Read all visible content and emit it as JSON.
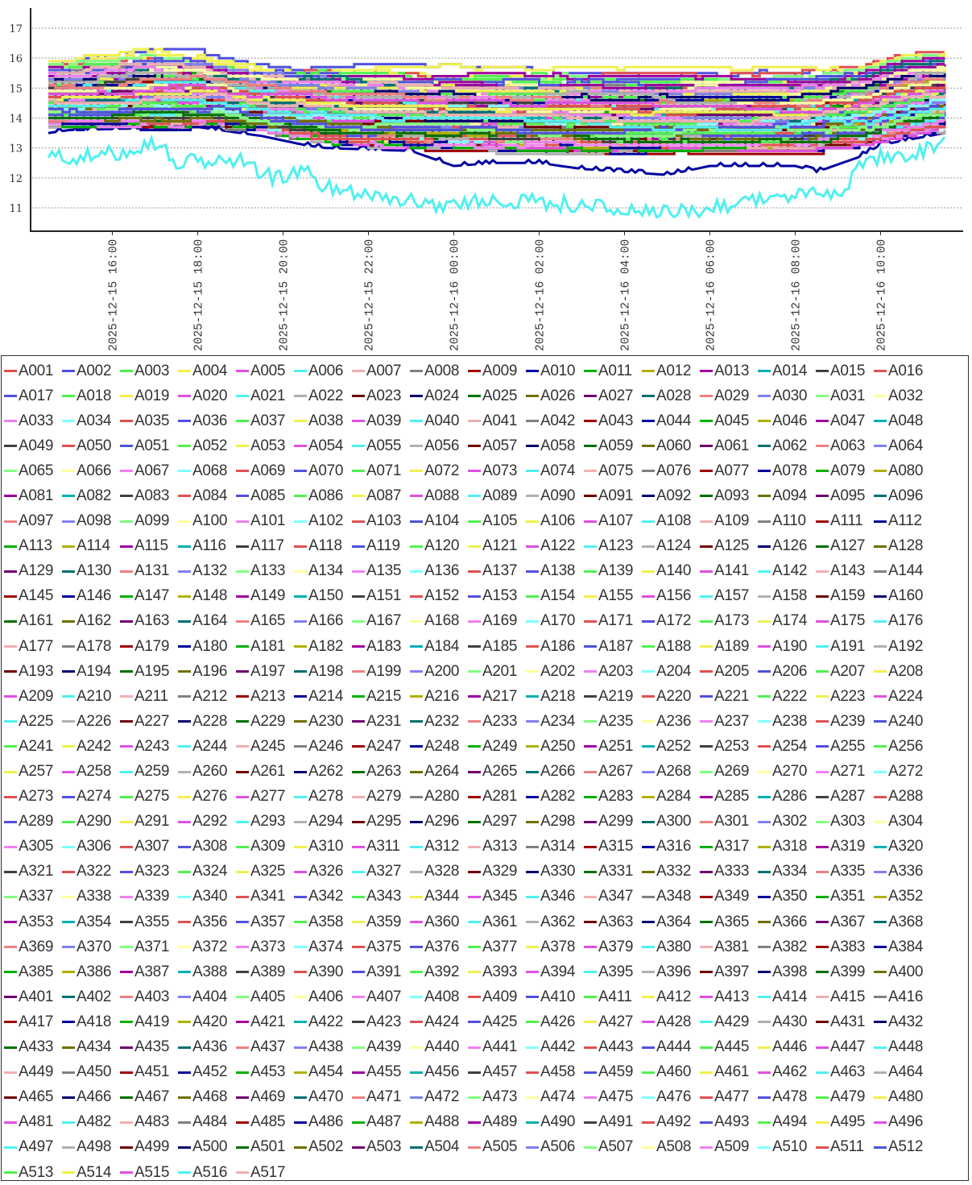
{
  "chart_data": {
    "type": "line",
    "title": "",
    "xlabel": "",
    "ylabel": "",
    "x_unit": "hours since 2025-12-15 14:30",
    "xlim": [
      0,
      21.0
    ],
    "ylim": [
      10.22,
      17.67
    ],
    "yticks": [
      11,
      12,
      13,
      14,
      15,
      16,
      17
    ],
    "xticks": [
      {
        "h": 1.5,
        "label": "2025-12-15 16:00"
      },
      {
        "h": 3.5,
        "label": "2025-12-15 18:00"
      },
      {
        "h": 5.5,
        "label": "2025-12-15 20:00"
      },
      {
        "h": 7.5,
        "label": "2025-12-15 22:00"
      },
      {
        "h": 9.5,
        "label": "2025-12-16 00:00"
      },
      {
        "h": 11.5,
        "label": "2025-12-16 02:00"
      },
      {
        "h": 13.5,
        "label": "2025-12-16 04:00"
      },
      {
        "h": 15.5,
        "label": "2025-12-16 06:00"
      },
      {
        "h": 17.5,
        "label": "2025-12-16 08:00"
      },
      {
        "h": 19.5,
        "label": "2025-12-16 10:00"
      }
    ],
    "grid": "horizontal-dashed",
    "legend_placement": "bottom",
    "palette": [
      "#e05050",
      "#5050e0",
      "#50f050",
      "#f0f050",
      "#e050e0",
      "#50f0f0",
      "#f0b0b0",
      "#808080",
      "#a00000",
      "#0000a0",
      "#00b000",
      "#b0b000",
      "#a000a0",
      "#00b0b0",
      "#404040",
      "#e05050",
      "#5050e0",
      "#50f050",
      "#f0f050",
      "#e050e0",
      "#50f0f0",
      "#b0b0b0",
      "#700000",
      "#000070",
      "#007000",
      "#707000",
      "#700070",
      "#007070",
      "#f08080",
      "#8080f0",
      "#80ff80",
      "#ffffa0",
      "#f080f0",
      "#80ffff"
    ],
    "profile_top": [
      [
        0,
        0
      ],
      [
        1.5,
        0.1
      ],
      [
        2.5,
        0.3
      ],
      [
        3.5,
        0.2
      ],
      [
        4.5,
        -0.1
      ],
      [
        5.5,
        -0.2
      ],
      [
        9.5,
        -0.3
      ],
      [
        13.5,
        -0.4
      ],
      [
        17.5,
        -0.4
      ],
      [
        19,
        -0.2
      ],
      [
        20,
        0.2
      ],
      [
        21,
        0.3
      ]
    ],
    "profile_bottom": [
      [
        0,
        0
      ],
      [
        4,
        0
      ],
      [
        5.5,
        -0.3
      ],
      [
        7,
        -0.6
      ],
      [
        9.5,
        -0.7
      ],
      [
        13.5,
        -0.8
      ],
      [
        17.5,
        -0.8
      ],
      [
        19,
        -0.6
      ],
      [
        20,
        -0.3
      ],
      [
        21,
        0
      ]
    ],
    "explicit_series": {
      "A006": [
        [
          0,
          12.7
        ],
        [
          1,
          12.7
        ],
        [
          1.5,
          12.8
        ],
        [
          2.5,
          13.2
        ],
        [
          3,
          12.5
        ],
        [
          4.5,
          12.6
        ],
        [
          5.25,
          12.0
        ],
        [
          6,
          12.2
        ],
        [
          6.5,
          11.7
        ],
        [
          7.5,
          11.5
        ],
        [
          8.5,
          11.2
        ],
        [
          9.5,
          11.1
        ],
        [
          10.5,
          11.3
        ],
        [
          11.5,
          11.2
        ],
        [
          12.5,
          11.1
        ],
        [
          13.5,
          10.9
        ],
        [
          14.5,
          10.8
        ],
        [
          15.5,
          11.0
        ],
        [
          16.5,
          11.3
        ],
        [
          17.5,
          11.4
        ],
        [
          18.5,
          11.5
        ],
        [
          19,
          12.3
        ],
        [
          19.5,
          12.7
        ],
        [
          20.5,
          12.9
        ],
        [
          21,
          13.2
        ]
      ],
      "A010": [
        [
          0,
          13.5
        ],
        [
          0.5,
          13.6
        ],
        [
          3.5,
          13.7
        ],
        [
          5,
          13.4
        ],
        [
          6,
          13.1
        ],
        [
          6.5,
          13.0
        ],
        [
          8.5,
          12.9
        ],
        [
          9.5,
          12.4
        ],
        [
          10.5,
          12.5
        ],
        [
          11.5,
          12.5
        ],
        [
          12.5,
          12.3
        ],
        [
          13.5,
          12.2
        ],
        [
          14.5,
          12.1
        ],
        [
          15.5,
          12.4
        ],
        [
          16.5,
          12.4
        ],
        [
          17.5,
          12.4
        ],
        [
          18,
          12.2
        ],
        [
          19,
          12.7
        ],
        [
          19.5,
          13.1
        ],
        [
          21,
          13.5
        ]
      ]
    },
    "series_names": [
      "A001",
      "A002",
      "A003",
      "A004",
      "A005",
      "A006",
      "A007",
      "A008",
      "A009",
      "A010",
      "A011",
      "A012",
      "A013",
      "A014",
      "A015",
      "A016",
      "A017",
      "A018",
      "A019",
      "A020",
      "A021",
      "A022",
      "A023",
      "A024",
      "A025",
      "A026",
      "A027",
      "A028",
      "A029",
      "A030",
      "A031",
      "A032",
      "A033",
      "A034",
      "A035",
      "A036",
      "A037",
      "A038",
      "A039",
      "A040",
      "A041",
      "A042",
      "A043",
      "A044",
      "A045",
      "A046",
      "A047",
      "A048",
      "A049",
      "A050",
      "A051",
      "A052",
      "A053",
      "A054",
      "A055",
      "A056",
      "A057",
      "A058",
      "A059",
      "A060",
      "A061",
      "A062",
      "A063",
      "A064",
      "A065",
      "A066",
      "A067",
      "A068",
      "A069",
      "A070",
      "A071",
      "A072",
      "A073",
      "A074",
      "A075",
      "A076",
      "A077",
      "A078",
      "A079",
      "A080",
      "A081",
      "A082",
      "A083",
      "A084",
      "A085",
      "A086",
      "A087",
      "A088",
      "A089",
      "A090",
      "A091",
      "A092",
      "A093",
      "A094",
      "A095",
      "A096",
      "A097",
      "A098",
      "A099",
      "A100",
      "A101",
      "A102",
      "A103",
      "A104",
      "A105",
      "A106",
      "A107",
      "A108",
      "A109",
      "A110",
      "A111",
      "A112",
      "A113",
      "A114",
      "A115",
      "A116",
      "A117",
      "A118",
      "A119",
      "A120",
      "A121",
      "A122",
      "A123",
      "A124",
      "A125",
      "A126",
      "A127",
      "A128",
      "A129",
      "A130",
      "A131",
      "A132",
      "A133",
      "A134",
      "A135",
      "A136",
      "A137",
      "A138",
      "A139",
      "A140",
      "A141",
      "A142",
      "A143",
      "A144",
      "A145",
      "A146",
      "A147",
      "A148",
      "A149",
      "A150",
      "A151",
      "A152",
      "A153",
      "A154",
      "A155",
      "A156",
      "A157",
      "A158",
      "A159",
      "A160",
      "A161",
      "A162",
      "A163",
      "A164",
      "A165",
      "A166",
      "A167",
      "A168",
      "A169",
      "A170",
      "A171",
      "A172",
      "A173",
      "A174",
      "A175",
      "A176",
      "A177",
      "A178",
      "A179",
      "A180",
      "A181",
      "A182",
      "A183",
      "A184",
      "A185",
      "A186",
      "A187",
      "A188",
      "A189",
      "A190",
      "A191",
      "A192",
      "A193",
      "A194",
      "A195",
      "A196",
      "A197",
      "A198",
      "A199",
      "A200",
      "A201",
      "A202",
      "A203",
      "A204",
      "A205",
      "A206",
      "A207",
      "A208",
      "A209",
      "A210",
      "A211",
      "A212",
      "A213",
      "A214",
      "A215",
      "A216",
      "A217",
      "A218",
      "A219",
      "A220",
      "A221",
      "A222",
      "A223",
      "A224",
      "A225",
      "A226",
      "A227",
      "A228",
      "A229",
      "A230",
      "A231",
      "A232",
      "A233",
      "A234",
      "A235",
      "A236",
      "A237",
      "A238",
      "A239",
      "A240",
      "A241",
      "A242",
      "A243",
      "A244",
      "A245",
      "A246",
      "A247",
      "A248",
      "A249",
      "A250",
      "A251",
      "A252",
      "A253",
      "A254",
      "A255",
      "A256",
      "A257",
      "A258",
      "A259",
      "A260",
      "A261",
      "A262",
      "A263",
      "A264",
      "A265",
      "A266",
      "A267",
      "A268",
      "A269",
      "A270",
      "A271",
      "A272",
      "A273",
      "A274",
      "A275",
      "A276",
      "A277",
      "A278",
      "A279",
      "A280",
      "A281",
      "A282",
      "A283",
      "A284",
      "A285",
      "A286",
      "A287",
      "A288",
      "A289",
      "A290",
      "A291",
      "A292",
      "A293",
      "A294",
      "A295",
      "A296",
      "A297",
      "A298",
      "A299",
      "A300",
      "A301",
      "A302",
      "A303",
      "A304",
      "A305",
      "A306",
      "A307",
      "A308",
      "A309",
      "A310",
      "A311",
      "A312",
      "A313",
      "A314",
      "A315",
      "A316",
      "A317",
      "A318",
      "A319",
      "A320",
      "A321",
      "A322",
      "A323",
      "A324",
      "A325",
      "A326",
      "A327",
      "A328",
      "A329",
      "A330",
      "A331",
      "A332",
      "A333",
      "A334",
      "A335",
      "A336",
      "A337",
      "A338",
      "A339",
      "A340",
      "A341",
      "A342",
      "A343",
      "A344",
      "A345",
      "A346",
      "A347",
      "A348",
      "A349",
      "A350",
      "A351",
      "A352",
      "A353",
      "A354",
      "A355",
      "A356",
      "A357",
      "A358",
      "A359",
      "A360",
      "A361",
      "A362",
      "A363",
      "A364",
      "A365",
      "A366",
      "A367",
      "A368",
      "A369",
      "A370",
      "A371",
      "A372",
      "A373",
      "A374",
      "A375",
      "A376",
      "A377",
      "A378",
      "A379",
      "A380",
      "A381",
      "A382",
      "A383",
      "A384",
      "A385",
      "A386",
      "A387",
      "A388",
      "A389",
      "A390",
      "A391",
      "A392",
      "A393",
      "A394",
      "A395",
      "A396",
      "A397",
      "A398",
      "A399",
      "A400",
      "A401",
      "A402",
      "A403",
      "A404",
      "A405",
      "A406",
      "A407",
      "A408",
      "A409",
      "A410",
      "A411",
      "A412",
      "A413",
      "A414",
      "A415",
      "A416",
      "A417",
      "A418",
      "A419",
      "A420",
      "A421",
      "A422",
      "A423",
      "A424",
      "A425",
      "A426",
      "A427",
      "A428",
      "A429",
      "A430",
      "A431",
      "A432",
      "A433",
      "A434",
      "A435",
      "A436",
      "A437",
      "A438",
      "A439",
      "A440",
      "A441",
      "A442",
      "A443",
      "A444",
      "A445",
      "A446",
      "A447",
      "A448",
      "A449",
      "A450",
      "A451",
      "A452",
      "A453",
      "A454",
      "A455",
      "A456",
      "A457",
      "A458",
      "A459",
      "A460",
      "A461",
      "A462",
      "A463",
      "A464",
      "A465",
      "A466",
      "A467",
      "A468",
      "A469",
      "A470",
      "A471",
      "A472",
      "A473",
      "A474",
      "A475",
      "A476",
      "A477",
      "A478",
      "A479",
      "A480",
      "A481",
      "A482",
      "A483",
      "A484",
      "A485",
      "A486",
      "A487",
      "A488",
      "A489",
      "A490",
      "A491",
      "A492",
      "A493",
      "A494",
      "A495",
      "A496",
      "A497",
      "A498",
      "A499",
      "A500",
      "A501",
      "A502",
      "A503",
      "A504",
      "A505",
      "A506",
      "A507",
      "A508",
      "A509",
      "A510",
      "A511",
      "A512",
      "A513",
      "A514",
      "A515",
      "A516",
      "A517"
    ],
    "series_base": [
      15.2,
      15.9,
      15.6,
      15.8,
      14.8,
      12.7,
      14.6,
      14.0,
      15.5,
      13.5,
      15.3,
      14.5,
      14.1,
      14.4,
      14.2,
      15.8,
      15.0,
      15.7,
      15.6,
      15.1,
      14.9,
      14.3,
      13.8,
      14.7,
      14.2,
      13.9,
      14.0,
      14.3,
      15.4,
      14.8,
      15.2,
      14.6,
      14.7,
      14.5,
      15.3,
      15.0,
      15.5,
      15.7,
      14.9,
      14.4,
      14.2,
      13.9,
      13.7,
      14.6,
      14.1,
      13.8,
      14.3,
      14.5,
      14.0,
      15.1,
      14.8,
      15.4,
      15.9,
      14.6,
      14.8,
      14.1,
      15.2,
      14.4,
      14.2,
      13.9,
      14.7,
      14.3,
      15.0,
      14.5,
      15.3,
      15.6,
      14.9,
      14.4,
      15.1,
      14.7,
      15.5,
      15.2,
      14.6,
      14.9,
      14.3,
      13.8,
      13.7,
      14.8,
      15.2,
      14.0,
      14.6,
      14.3,
      14.1,
      15.4,
      15.0,
      15.6,
      15.3,
      14.7,
      14.5,
      14.0,
      14.8,
      14.4,
      15.1,
      13.9,
      14.2,
      14.6,
      15.0,
      14.7,
      15.7,
      15.4,
      14.8,
      14.5,
      15.2,
      14.9,
      15.5,
      14.6,
      14.3,
      14.2,
      14.4,
      13.8,
      14.0,
      13.7,
      14.1,
      14.5,
      14.7,
      15.1,
      15.3,
      14.9,
      15.6,
      14.8,
      14.2,
      14.6,
      14.0,
      15.0,
      13.9,
      14.3,
      14.4,
      14.6,
      14.2,
      14.5,
      15.2,
      14.8,
      15.4,
      15.1,
      14.7,
      14.9,
      14.4,
      15.3,
      15.5,
      14.6,
      14.9,
      14.1,
      14.3,
      14.0,
      13.8,
      14.7,
      14.2,
      13.9,
      14.5,
      14.4,
      15.0,
      15.2,
      14.8,
      15.6,
      15.1,
      14.6,
      14.3,
      13.7,
      14.5,
      14.1,
      14.4,
      14.0,
      14.6,
      14.2,
      15.3,
      14.8,
      15.0,
      15.5,
      14.7,
      14.5,
      15.2,
      14.9,
      14.3,
      15.1,
      14.6,
      14.4,
      13.9,
      14.0,
      14.8,
      14.5,
      15.4,
      15.1,
      15.7,
      14.8,
      14.6,
      14.2,
      14.0,
      14.3,
      14.7,
      13.8,
      14.4,
      14.9,
      14.1,
      14.5,
      14.2,
      14.8,
      15.0,
      15.3,
      14.9,
      15.5,
      14.6,
      14.7,
      14.3,
      14.4,
      15.2,
      14.5,
      14.1,
      13.9,
      14.6,
      15.0,
      14.8,
      15.4,
      14.3,
      14.7,
      13.8,
      14.0,
      14.2,
      14.5,
      14.3,
      15.1,
      14.9,
      15.3,
      14.6,
      14.8,
      14.5,
      15.1,
      14.8,
      14.3,
      14.7,
      14.1,
      15.2,
      14.6,
      14.9,
      14.4,
      14.0,
      14.2,
      14.8,
      15.3,
      15.0,
      15.6,
      14.7,
      14.5,
      14.4,
      13.9,
      14.1,
      14.6,
      14.3,
      14.8,
      15.2,
      14.9,
      15.4,
      14.5,
      14.7,
      14.0,
      14.3,
      14.4,
      14.9,
      14.6,
      15.0,
      14.4,
      14.2,
      14.7,
      14.3,
      15.1,
      14.8,
      15.5,
      15.2,
      14.6,
      14.0,
      14.5,
      13.8,
      14.1,
      14.4,
      14.9,
      14.6,
      15.3,
      15.0,
      14.7,
      14.2,
      14.3,
      14.5,
      14.8,
      14.1,
      15.0,
      15.4,
      14.6,
      14.9,
      14.2,
      14.3,
      14.8,
      14.5,
      14.0,
      14.6,
      14.9,
      15.2,
      14.7,
      15.0,
      14.4,
      14.2,
      14.1,
      14.5,
      15.3,
      14.8,
      15.1,
      14.6,
      14.0,
      13.9,
      14.3,
      14.7,
      14.4,
      15.0,
      14.9,
      15.5,
      14.6,
      14.8,
      14.2,
      14.1,
      14.5,
      14.3,
      14.7,
      14.6,
      14.3,
      14.9,
      14.5,
      15.1,
      14.8,
      14.4,
      14.0,
      14.2,
      14.7,
      15.2,
      15.0,
      14.6,
      14.3,
      14.1,
      14.5,
      14.8,
      15.4,
      14.9,
      14.7,
      14.2,
      14.0,
      14.4,
      14.6,
      15.1,
      14.8,
      15.3,
      14.5,
      14.3,
      13.9,
      14.6,
      14.4,
      14.8,
      14.5,
      14.2,
      14.7,
      15.0,
      14.6,
      14.3,
      14.9,
      15.2,
      14.4,
      14.1,
      14.5,
      14.8,
      15.1,
      14.7,
      14.3,
      14.0,
      14.6,
      14.9,
      15.3,
      14.5,
      14.2,
      14.4,
      14.7,
      15.0,
      14.8,
      14.3,
      14.1,
      14.6,
      14.5,
      14.9,
      15.2,
      14.4,
      14.7,
      14.1,
      14.5,
      14.8,
      15.1,
      14.6,
      14.2,
      14.3,
      14.9,
      15.0,
      14.7,
      14.4,
      14.6,
      14.0,
      14.5,
      14.8,
      15.2,
      14.3,
      14.1,
      14.6,
      14.9,
      15.4,
      14.7,
      14.5,
      14.2,
      14.4,
      14.8,
      15.0,
      14.6,
      14.3,
      14.9,
      14.5,
      14.2,
      14.8,
      14.6,
      15.1,
      14.9,
      14.3,
      14.0,
      14.4,
      14.7,
      15.2,
      14.5,
      14.6,
      14.1,
      14.3,
      14.8,
      15.0,
      14.7,
      14.4,
      14.2,
      14.9,
      15.3,
      14.6,
      14.5,
      14.0,
      14.3,
      14.7,
      14.8,
      15.1,
      14.4,
      14.6,
      14.2,
      14.7,
      14.4,
      14.9,
      14.3,
      14.6,
      15.0,
      14.8,
      14.5,
      14.1,
      14.2,
      14.7,
      15.1,
      14.9,
      14.6,
      14.4,
      14.3,
      14.5,
      15.2,
      14.8,
      14.0,
      14.6,
      14.7,
      14.9,
      14.3,
      14.2,
      14.5,
      15.0,
      14.8,
      14.4,
      14.6,
      14.1,
      14.9,
      14.6,
      14.8,
      14.3,
      14.5,
      14.9,
      15.1,
      14.7,
      14.2,
      14.4,
      14.6,
      15.0,
      14.8,
      14.1,
      14.3,
      14.7,
      14.5,
      14.9,
      15.2,
      14.4,
      14.6,
      14.0,
      14.3,
      14.8,
      14.7,
      15.1,
      14.5,
      14.2,
      14.9,
      14.6,
      14.4,
      14.8,
      14.3,
      14.5,
      14.7,
      14.9,
      14.4,
      14.6
    ]
  }
}
